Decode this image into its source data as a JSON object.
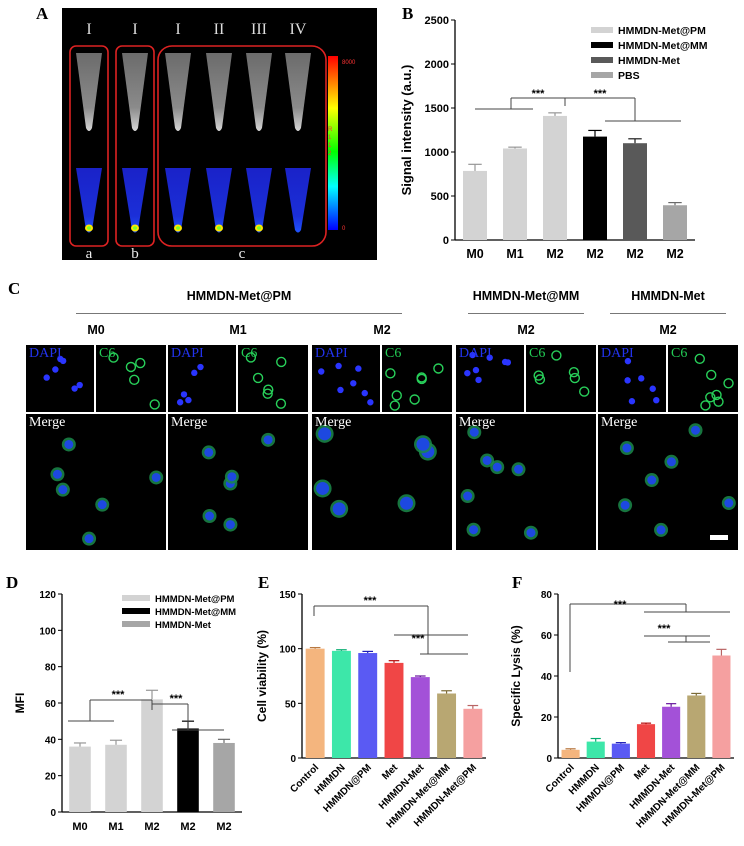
{
  "panels": {
    "A": {
      "letter": "A",
      "tube_labels": [
        "I",
        "I",
        "I",
        "II",
        "III",
        "IV"
      ],
      "group_labels": [
        "a",
        "b",
        "c"
      ],
      "colorbar_max": "8000",
      "colorbar_min": "0",
      "colorbar_side_text": "R\n1\n1\n2",
      "colorbar_colors": [
        "#ff0000",
        "#ffff00",
        "#00ff00",
        "#00ffff",
        "#0000ff"
      ]
    },
    "C": {
      "letter": "C",
      "groups": [
        {
          "title": "HMMDN-Met@PM",
          "columns": [
            "M0",
            "M1",
            "M2"
          ]
        },
        {
          "title": "HMMDN-Met@MM",
          "columns": [
            "M2"
          ]
        },
        {
          "title": "HMMDN-Met",
          "columns": [
            "M2"
          ]
        }
      ],
      "channel_labels": {
        "dapi": "DAPI",
        "c6": "C6",
        "merge": "Merge"
      },
      "channel_colors": {
        "dapi": "#2233ee",
        "c6": "#22cc55",
        "merge": "#ffffff"
      }
    }
  },
  "chart_data": [
    {
      "id": "B",
      "letter": "B",
      "type": "bar",
      "ylabel": "Signal intensity (a.u.)",
      "xlabel": "",
      "categories": [
        "M0",
        "M1",
        "M2",
        "M2",
        "M2",
        "M2"
      ],
      "values": [
        785,
        1040,
        1410,
        1175,
        1100,
        395
      ],
      "errors": [
        75,
        15,
        35,
        70,
        50,
        30
      ],
      "bar_colors": [
        "#d3d3d3",
        "#d3d3d3",
        "#d3d3d3",
        "#000000",
        "#595959",
        "#a6a6a6"
      ],
      "ylim": [
        0,
        2500
      ],
      "yticks": [
        0,
        500,
        1000,
        1500,
        2000,
        2500
      ],
      "legend": [
        {
          "name": "HMMDN-Met@PM",
          "color": "#d3d3d3"
        },
        {
          "name": "HMMDN-Met@MM",
          "color": "#000000"
        },
        {
          "name": "HMMDN-Met",
          "color": "#595959"
        },
        {
          "name": "PBS",
          "color": "#a6a6a6"
        }
      ],
      "legend_position": "top-right",
      "significance": [
        "***",
        "***"
      ]
    },
    {
      "id": "D",
      "letter": "D",
      "type": "bar",
      "ylabel": "MFI",
      "xlabel": "",
      "categories": [
        "M0",
        "M1",
        "M2",
        "M2",
        "M2"
      ],
      "values": [
        36,
        37,
        62,
        46,
        38
      ],
      "errors": [
        2,
        2.5,
        5,
        4,
        2
      ],
      "bar_colors": [
        "#d3d3d3",
        "#d3d3d3",
        "#d3d3d3",
        "#000000",
        "#a6a6a6"
      ],
      "ylim": [
        0,
        120
      ],
      "yticks": [
        0,
        20,
        40,
        60,
        80,
        100,
        120
      ],
      "legend": [
        {
          "name": "HMMDN-Met@PM",
          "color": "#d3d3d3"
        },
        {
          "name": "HMMDN-Met@MM",
          "color": "#000000"
        },
        {
          "name": "HMMDN-Met",
          "color": "#a6a6a6"
        }
      ],
      "legend_position": "top-right",
      "significance": [
        "***",
        "***"
      ]
    },
    {
      "id": "E",
      "letter": "E",
      "type": "bar",
      "ylabel": "Cell viability (%)",
      "xlabel": "",
      "categories": [
        "Control",
        "HMMDN",
        "HMMDN@PM",
        "Met",
        "HMMDN-Met",
        "HMMDN-Met@MM",
        "HMMDN-Met@PM"
      ],
      "values": [
        100,
        98,
        96,
        87,
        74,
        59,
        45
      ],
      "errors": [
        1,
        1,
        1.5,
        2,
        1,
        2.5,
        3
      ],
      "bar_colors": [
        "#f4b57e",
        "#3de7a9",
        "#5a5af3",
        "#f04646",
        "#a351d8",
        "#b8a772",
        "#f5a0a0"
      ],
      "ylim": [
        0,
        150
      ],
      "yticks": [
        0,
        50,
        100,
        150
      ],
      "significance": [
        "***",
        "***"
      ]
    },
    {
      "id": "F",
      "letter": "F",
      "type": "bar",
      "ylabel": "Specific Lysis (%)",
      "xlabel": "",
      "categories": [
        "Control",
        "HMMDN",
        "HMMDN@PM",
        "Met",
        "HMMDN-Met",
        "HMMDN-Met@MM",
        "HMMDN-Met@PM"
      ],
      "values": [
        4,
        8,
        7,
        16.5,
        25,
        30.5,
        50
      ],
      "errors": [
        0.5,
        1.5,
        0.5,
        0.5,
        1.5,
        1,
        3
      ],
      "bar_colors": [
        "#f4b57e",
        "#3de7a9",
        "#5a5af3",
        "#f04646",
        "#a351d8",
        "#b8a772",
        "#f5a0a0"
      ],
      "ylim": [
        0,
        80
      ],
      "yticks": [
        0,
        20,
        40,
        60,
        80
      ],
      "significance": [
        "***",
        "***"
      ]
    }
  ]
}
